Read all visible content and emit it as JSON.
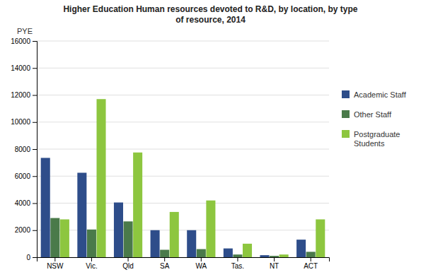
{
  "chart_data": {
    "type": "bar",
    "title": "Higher Education Human resources devoted to R&D, by location, by type\nof resource, 2014",
    "y_label": "PYE",
    "categories": [
      "NSW",
      "Vic.",
      "Qld",
      "SA",
      "WA",
      "Tas.",
      "NT",
      "ACT"
    ],
    "series": [
      {
        "name": "Academic Staff",
        "color": "#2E4D8A",
        "values": [
          7350,
          6250,
          4050,
          2000,
          2000,
          650,
          150,
          1300
        ]
      },
      {
        "name": "Other Staff",
        "color": "#4A7A4A",
        "values": [
          2900,
          2050,
          2650,
          550,
          600,
          200,
          100,
          400
        ]
      },
      {
        "name": "Postgraduate\nStudents",
        "color": "#8DC63F",
        "values": [
          2800,
          11700,
          7750,
          3350,
          4200,
          1000,
          200,
          2800
        ]
      }
    ],
    "ylim": [
      0,
      16000
    ],
    "yticks": [
      0,
      2000,
      4000,
      6000,
      8000,
      10000,
      12000,
      14000,
      16000
    ],
    "grid": true,
    "legend": "right"
  }
}
